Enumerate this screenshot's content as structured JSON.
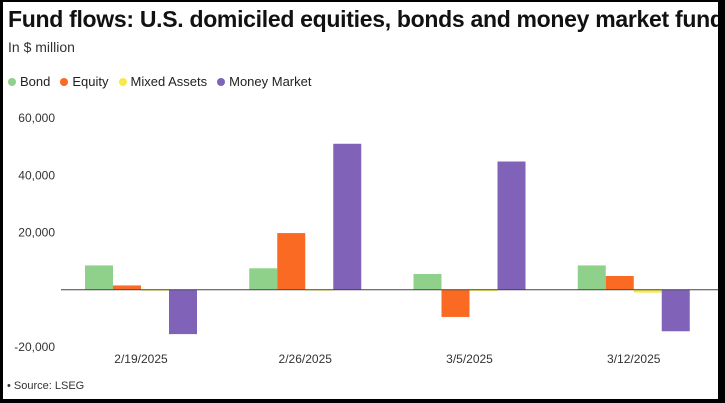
{
  "title": "Fund flows: U.S. domiciled equities, bonds and money market funds",
  "subtitle": "In $ million",
  "source": "• Source: LSEG",
  "chart_data": {
    "type": "bar",
    "categories": [
      "2/19/2025",
      "2/26/2025",
      "3/5/2025",
      "3/12/2025"
    ],
    "series": [
      {
        "name": "Bond",
        "color": "#8fd18a",
        "values": [
          8500,
          7500,
          5500,
          8500
        ]
      },
      {
        "name": "Equity",
        "color": "#fb6a22",
        "values": [
          1500,
          19800,
          -9500,
          4800
        ]
      },
      {
        "name": "Mixed Assets",
        "color": "#f7e94a",
        "values": [
          -300,
          -200,
          -400,
          -1000
        ]
      },
      {
        "name": "Money Market",
        "color": "#8062b8",
        "values": [
          -15500,
          51000,
          44800,
          -14500
        ]
      }
    ],
    "ylim": [
      -20000,
      60000
    ],
    "yticks": [
      -20000,
      0,
      20000,
      40000,
      60000
    ],
    "ytick_labels": [
      "-20,000",
      "",
      "20,000",
      "40,000",
      "60,000"
    ],
    "xlabel": "",
    "ylabel": "",
    "legend_position": "top-left"
  }
}
